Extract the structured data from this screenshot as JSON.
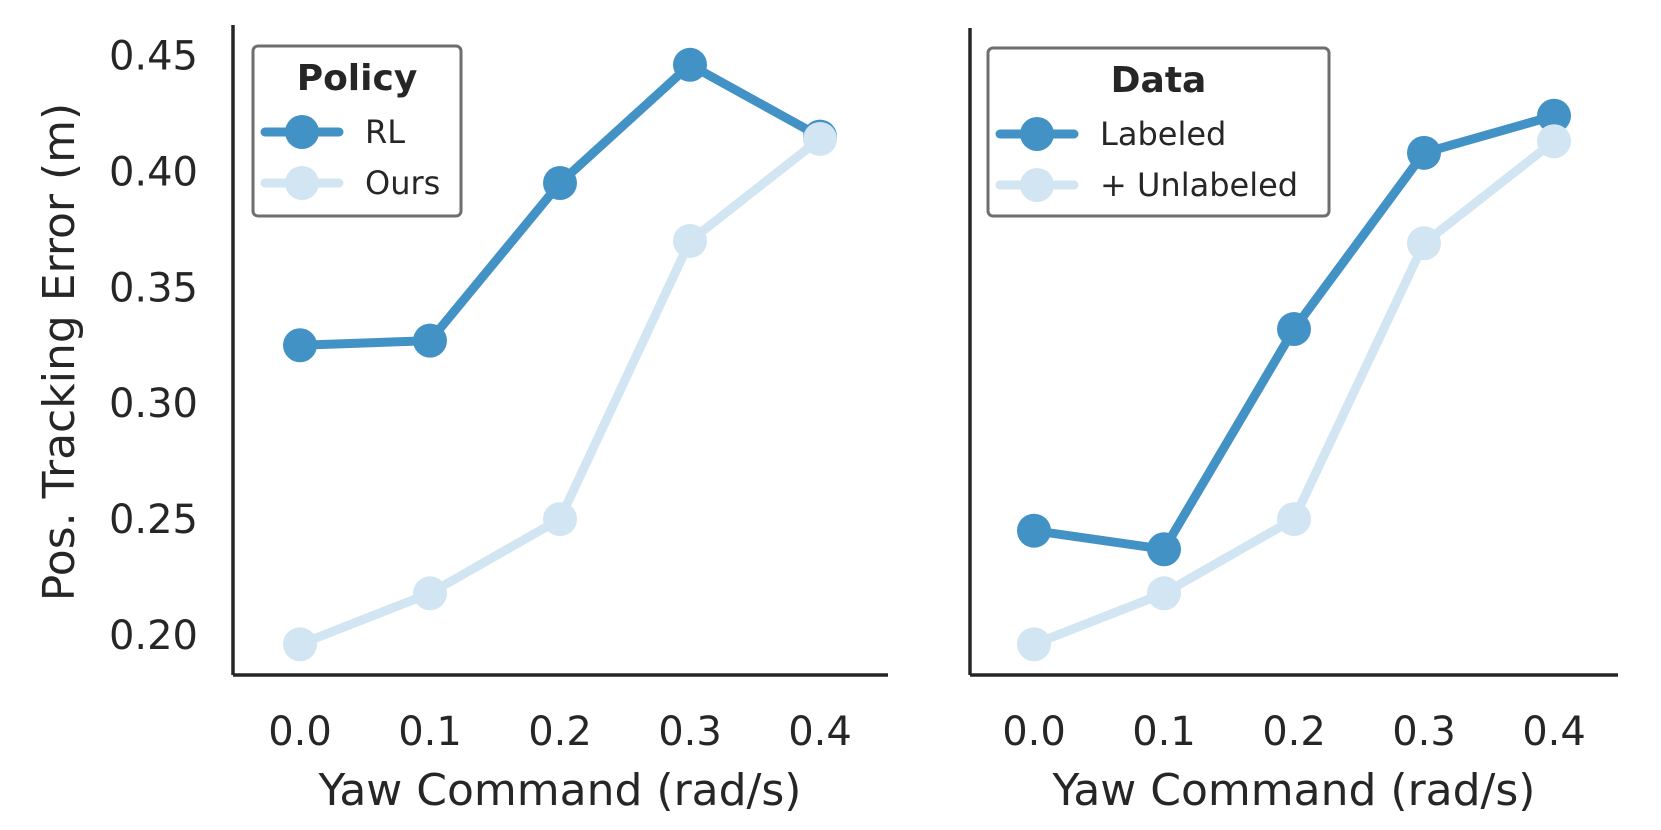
{
  "chart_data": [
    {
      "type": "line",
      "xlabel": "Yaw Command (rad/s)",
      "ylabel": "Pos. Tracking Error (m)",
      "x": [
        0.0,
        0.1,
        0.2,
        0.3,
        0.4
      ],
      "x_tick_labels": [
        "0.0",
        "0.1",
        "0.2",
        "0.3",
        "0.4"
      ],
      "y_ticks": [
        0.2,
        0.25,
        0.3,
        0.35,
        0.4,
        0.45
      ],
      "y_tick_labels": [
        "0.20",
        "0.25",
        "0.30",
        "0.35",
        "0.40",
        "0.45"
      ],
      "ylim": [
        0.18,
        0.465
      ],
      "legend_title": "Policy",
      "legend_position": "top-left",
      "series": [
        {
          "name": "RL",
          "color": "#4292c6",
          "values": [
            0.325,
            0.327,
            0.395,
            0.446,
            0.415
          ]
        },
        {
          "name": "Ours",
          "color": "#d2e5f2",
          "values": [
            0.196,
            0.218,
            0.25,
            0.37,
            0.414
          ]
        }
      ]
    },
    {
      "type": "line",
      "xlabel": "Yaw Command (rad/s)",
      "ylabel": "",
      "x": [
        0.0,
        0.1,
        0.2,
        0.3,
        0.4
      ],
      "x_tick_labels": [
        "0.0",
        "0.1",
        "0.2",
        "0.3",
        "0.4"
      ],
      "y_ticks": [
        0.2,
        0.25,
        0.3,
        0.35,
        0.4,
        0.45
      ],
      "ylim": [
        0.18,
        0.465
      ],
      "legend_title": "Data",
      "legend_position": "top-left",
      "series": [
        {
          "name": "Labeled",
          "color": "#4292c6",
          "values": [
            0.245,
            0.237,
            0.332,
            0.408,
            0.424
          ]
        },
        {
          "name": "+ Unlabeled",
          "color": "#d2e5f2",
          "values": [
            0.196,
            0.218,
            0.25,
            0.369,
            0.413
          ]
        }
      ]
    }
  ]
}
